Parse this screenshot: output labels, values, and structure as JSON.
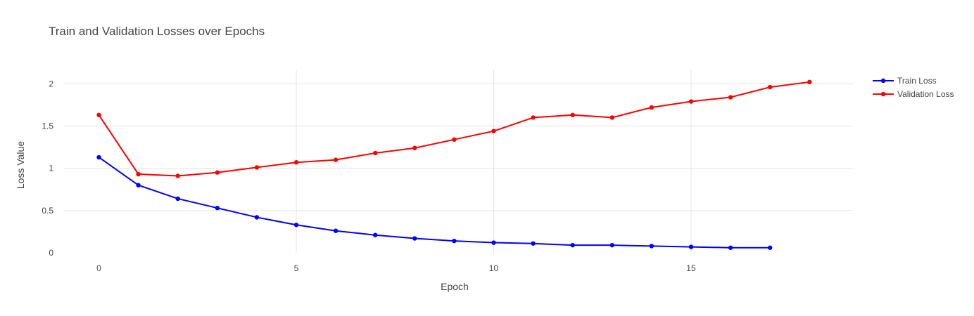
{
  "chart_data": {
    "type": "line",
    "title": "Train and Validation Losses over Epochs",
    "xlabel": "Epoch",
    "ylabel": "Loss Value",
    "xlim": [
      -0.9,
      19.1
    ],
    "ylim": [
      0,
      2.16
    ],
    "xticks": [
      0,
      5,
      10,
      15
    ],
    "yticks": [
      0,
      0.5,
      1,
      1.5,
      2
    ],
    "ytick_labels": [
      "0",
      "0.5",
      "1",
      "1.5",
      "2"
    ],
    "grid": true,
    "legend_position": "top-right",
    "series": [
      {
        "name": "Train Loss",
        "color": "#0000ff",
        "x": [
          0,
          1,
          2,
          3,
          4,
          5,
          6,
          7,
          8,
          9,
          10,
          11,
          12,
          13,
          14,
          15,
          16,
          17
        ],
        "values": [
          1.13,
          0.8,
          0.64,
          0.53,
          0.42,
          0.33,
          0.26,
          0.21,
          0.17,
          0.14,
          0.12,
          0.11,
          0.09,
          0.09,
          0.08,
          0.07,
          0.06,
          0.06
        ]
      },
      {
        "name": "Validation Loss",
        "color": "#ff0000",
        "x": [
          0,
          1,
          2,
          3,
          4,
          5,
          6,
          7,
          8,
          9,
          10,
          11,
          12,
          13,
          14,
          15,
          16,
          17,
          18
        ],
        "values": [
          1.63,
          0.93,
          0.91,
          0.95,
          1.01,
          1.07,
          1.1,
          1.18,
          1.24,
          1.34,
          1.44,
          1.6,
          1.63,
          1.6,
          1.72,
          1.79,
          1.84,
          1.96,
          2.02
        ]
      }
    ]
  }
}
